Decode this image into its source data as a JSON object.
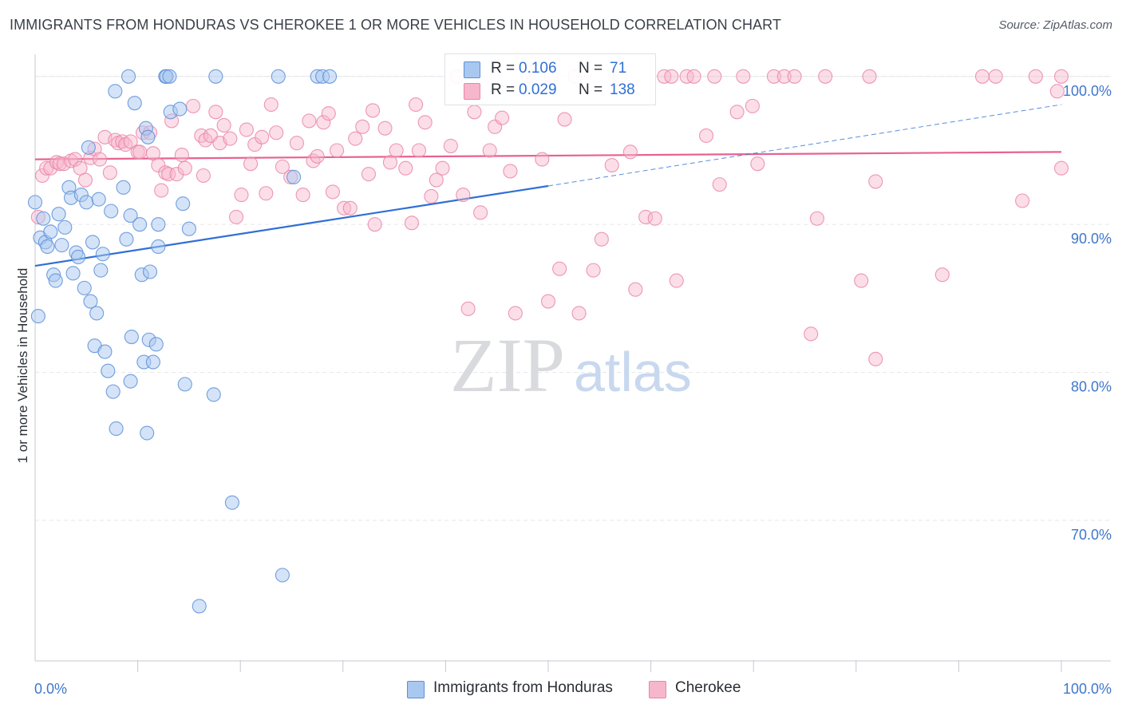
{
  "title": "IMMIGRANTS FROM HONDURAS VS CHEROKEE 1 OR MORE VEHICLES IN HOUSEHOLD CORRELATION CHART",
  "source": "Source: ZipAtlas.com",
  "watermark": {
    "zip": "ZIP",
    "atlas": "atlas"
  },
  "legend_top": {
    "rows": [
      {
        "r_label": "R =",
        "r_value": "0.106",
        "n_label": "N =",
        "n_value": "71"
      },
      {
        "r_label": "R =",
        "r_value": "0.029",
        "n_label": "N =",
        "n_value": "138"
      }
    ]
  },
  "legend_bottom": {
    "series_a": "Immigrants from Honduras",
    "series_b": "Cherokee"
  },
  "colors": {
    "blue_fill": "#a9c8f0",
    "blue_stroke": "#5b8fd8",
    "blue_line": "#2f6fd6",
    "pink_fill": "#f6b6cb",
    "pink_stroke": "#ea86a8",
    "pink_line": "#e8628f",
    "axis_text": "#3f77cc",
    "grid": "#e6e8ec"
  },
  "chart_data": {
    "type": "scatter",
    "title": "IMMIGRANTS FROM HONDURAS VS CHEROKEE 1 OR MORE VEHICLES IN HOUSEHOLD CORRELATION CHART",
    "xlabel": "",
    "ylabel": "1 or more Vehicles in Household",
    "xlim": [
      0,
      100
    ],
    "ylim": [
      60.5,
      101.5
    ],
    "x_tick_labels": [
      "0.0%",
      "100.0%"
    ],
    "y_ticks": [
      70,
      80,
      90,
      100
    ],
    "y_tick_labels": [
      "70.0%",
      "80.0%",
      "90.0%",
      "100.0%"
    ],
    "grid": true,
    "legend": "top-center",
    "series": [
      {
        "name": "Immigrants from Honduras",
        "r": 0.106,
        "n": 71,
        "trend": {
          "x": [
            0,
            50
          ],
          "y": [
            87.2,
            92.6
          ]
        },
        "trend_extension": {
          "x": [
            50,
            100
          ],
          "y": [
            92.6,
            98.1
          ]
        },
        "points": [
          [
            0.0,
            91.5
          ],
          [
            0.3,
            83.8
          ],
          [
            0.5,
            89.1
          ],
          [
            0.8,
            90.4
          ],
          [
            1.0,
            88.8
          ],
          [
            1.2,
            88.5
          ],
          [
            1.5,
            89.5
          ],
          [
            1.8,
            86.6
          ],
          [
            2.0,
            86.2
          ],
          [
            2.3,
            90.7
          ],
          [
            2.6,
            88.6
          ],
          [
            2.9,
            89.8
          ],
          [
            3.3,
            92.5
          ],
          [
            3.5,
            91.8
          ],
          [
            3.7,
            86.7
          ],
          [
            4.0,
            88.1
          ],
          [
            4.2,
            87.8
          ],
          [
            4.5,
            92.0
          ],
          [
            4.8,
            85.7
          ],
          [
            5.0,
            91.5
          ],
          [
            5.2,
            95.2
          ],
          [
            5.4,
            84.8
          ],
          [
            5.6,
            88.8
          ],
          [
            5.8,
            81.8
          ],
          [
            6.0,
            84.0
          ],
          [
            6.2,
            91.7
          ],
          [
            6.4,
            86.9
          ],
          [
            6.6,
            88.0
          ],
          [
            6.8,
            81.4
          ],
          [
            7.1,
            80.1
          ],
          [
            7.4,
            90.9
          ],
          [
            7.6,
            78.7
          ],
          [
            7.8,
            99.0
          ],
          [
            7.9,
            76.2
          ],
          [
            8.6,
            92.5
          ],
          [
            8.9,
            89.0
          ],
          [
            9.1,
            100.0
          ],
          [
            9.3,
            90.6
          ],
          [
            9.3,
            79.4
          ],
          [
            9.4,
            82.4
          ],
          [
            9.7,
            98.2
          ],
          [
            10.2,
            90.0
          ],
          [
            10.4,
            86.6
          ],
          [
            10.6,
            80.7
          ],
          [
            10.8,
            96.5
          ],
          [
            10.9,
            75.9
          ],
          [
            11.0,
            95.9
          ],
          [
            11.1,
            82.2
          ],
          [
            11.2,
            86.8
          ],
          [
            11.5,
            80.7
          ],
          [
            11.8,
            81.9
          ],
          [
            12.0,
            88.5
          ],
          [
            12.0,
            90.0
          ],
          [
            12.7,
            100.0
          ],
          [
            12.8,
            100.0
          ],
          [
            13.1,
            100.0
          ],
          [
            13.2,
            97.6
          ],
          [
            14.1,
            97.8
          ],
          [
            14.4,
            91.4
          ],
          [
            14.6,
            79.2
          ],
          [
            15.0,
            89.7
          ],
          [
            16.0,
            64.2
          ],
          [
            17.4,
            78.5
          ],
          [
            17.6,
            100.0
          ],
          [
            19.2,
            71.2
          ],
          [
            23.7,
            100.0
          ],
          [
            24.1,
            66.3
          ],
          [
            25.2,
            93.2
          ],
          [
            27.5,
            100.0
          ],
          [
            28.0,
            100.0
          ],
          [
            28.7,
            100.0
          ]
        ]
      },
      {
        "name": "Cherokee",
        "r": 0.029,
        "n": 138,
        "trend": {
          "x": [
            0,
            100
          ],
          "y": [
            94.4,
            94.9
          ]
        },
        "points": [
          [
            0.3,
            90.5
          ],
          [
            0.7,
            93.3
          ],
          [
            1.1,
            93.8
          ],
          [
            1.5,
            93.8
          ],
          [
            2.1,
            94.2
          ],
          [
            2.4,
            94.1
          ],
          [
            2.8,
            94.1
          ],
          [
            3.5,
            94.3
          ],
          [
            3.9,
            94.4
          ],
          [
            4.4,
            93.8
          ],
          [
            4.9,
            93.0
          ],
          [
            5.4,
            94.5
          ],
          [
            5.8,
            95.1
          ],
          [
            6.3,
            94.4
          ],
          [
            6.8,
            95.9
          ],
          [
            7.3,
            93.5
          ],
          [
            7.8,
            95.7
          ],
          [
            8.1,
            95.5
          ],
          [
            8.5,
            95.6
          ],
          [
            8.8,
            95.4
          ],
          [
            9.3,
            95.6
          ],
          [
            10.0,
            94.9
          ],
          [
            10.2,
            94.9
          ],
          [
            10.5,
            96.2
          ],
          [
            11.2,
            96.2
          ],
          [
            11.5,
            94.8
          ],
          [
            12.0,
            94.0
          ],
          [
            12.3,
            92.3
          ],
          [
            12.7,
            93.5
          ],
          [
            13.0,
            93.4
          ],
          [
            13.3,
            97.0
          ],
          [
            13.8,
            93.4
          ],
          [
            14.3,
            94.7
          ],
          [
            14.6,
            93.8
          ],
          [
            15.4,
            98.0
          ],
          [
            16.2,
            96.0
          ],
          [
            16.4,
            93.3
          ],
          [
            16.6,
            95.7
          ],
          [
            17.1,
            96.0
          ],
          [
            17.6,
            97.6
          ],
          [
            18.0,
            95.5
          ],
          [
            18.4,
            96.7
          ],
          [
            19.0,
            95.8
          ],
          [
            19.6,
            90.5
          ],
          [
            20.1,
            92.0
          ],
          [
            20.6,
            96.4
          ],
          [
            21.0,
            94.1
          ],
          [
            21.4,
            95.4
          ],
          [
            22.1,
            95.9
          ],
          [
            22.5,
            92.1
          ],
          [
            23.0,
            98.1
          ],
          [
            23.5,
            96.2
          ],
          [
            24.1,
            93.9
          ],
          [
            24.9,
            93.2
          ],
          [
            25.5,
            95.5
          ],
          [
            26.1,
            92.0
          ],
          [
            26.7,
            97.0
          ],
          [
            27.1,
            94.3
          ],
          [
            27.5,
            94.6
          ],
          [
            28.1,
            96.9
          ],
          [
            28.6,
            97.5
          ],
          [
            29.0,
            92.2
          ],
          [
            29.4,
            95.0
          ],
          [
            30.1,
            91.1
          ],
          [
            30.7,
            91.1
          ],
          [
            31.2,
            95.8
          ],
          [
            31.9,
            96.6
          ],
          [
            32.5,
            93.4
          ],
          [
            32.9,
            97.7
          ],
          [
            33.1,
            90.0
          ],
          [
            34.1,
            96.5
          ],
          [
            34.6,
            94.2
          ],
          [
            35.2,
            95.0
          ],
          [
            36.1,
            93.8
          ],
          [
            36.7,
            90.1
          ],
          [
            37.1,
            98.1
          ],
          [
            37.4,
            95.0
          ],
          [
            38.0,
            96.9
          ],
          [
            38.6,
            91.9
          ],
          [
            39.1,
            93.0
          ],
          [
            39.7,
            93.8
          ],
          [
            40.5,
            95.3
          ],
          [
            41.1,
            100.0
          ],
          [
            41.7,
            92.0
          ],
          [
            42.2,
            84.3
          ],
          [
            42.8,
            97.6
          ],
          [
            43.4,
            90.8
          ],
          [
            44.3,
            95.0
          ],
          [
            44.8,
            96.6
          ],
          [
            45.5,
            97.2
          ],
          [
            46.3,
            93.6
          ],
          [
            46.8,
            84.0
          ],
          [
            48.0,
            100.0
          ],
          [
            49.4,
            94.4
          ],
          [
            50.0,
            84.8
          ],
          [
            50.3,
            100.0
          ],
          [
            51.1,
            87.0
          ],
          [
            51.6,
            97.1
          ],
          [
            52.6,
            100.0
          ],
          [
            53.0,
            84.0
          ],
          [
            54.4,
            86.9
          ],
          [
            55.2,
            89.0
          ],
          [
            56.2,
            94.0
          ],
          [
            57.0,
            100.0
          ],
          [
            58.0,
            94.9
          ],
          [
            58.5,
            85.6
          ],
          [
            59.5,
            90.5
          ],
          [
            60.4,
            90.4
          ],
          [
            61.3,
            100.0
          ],
          [
            62.0,
            100.0
          ],
          [
            62.5,
            86.2
          ],
          [
            63.5,
            100.0
          ],
          [
            64.2,
            100.0
          ],
          [
            65.4,
            96.0
          ],
          [
            66.2,
            100.0
          ],
          [
            66.7,
            92.7
          ],
          [
            68.4,
            97.6
          ],
          [
            69.0,
            100.0
          ],
          [
            69.9,
            98.0
          ],
          [
            70.4,
            94.1
          ],
          [
            72.0,
            100.0
          ],
          [
            73.0,
            100.0
          ],
          [
            74.0,
            100.0
          ],
          [
            75.6,
            82.6
          ],
          [
            76.2,
            90.4
          ],
          [
            77.0,
            100.0
          ],
          [
            80.5,
            86.2
          ],
          [
            81.3,
            100.0
          ],
          [
            81.9,
            80.9
          ],
          [
            81.9,
            92.9
          ],
          [
            88.4,
            86.6
          ],
          [
            92.3,
            100.0
          ],
          [
            93.6,
            100.0
          ],
          [
            96.2,
            91.6
          ],
          [
            97.5,
            100.0
          ],
          [
            100.0,
            100.0
          ],
          [
            99.6,
            99.0
          ],
          [
            100.0,
            93.8
          ]
        ]
      }
    ]
  }
}
